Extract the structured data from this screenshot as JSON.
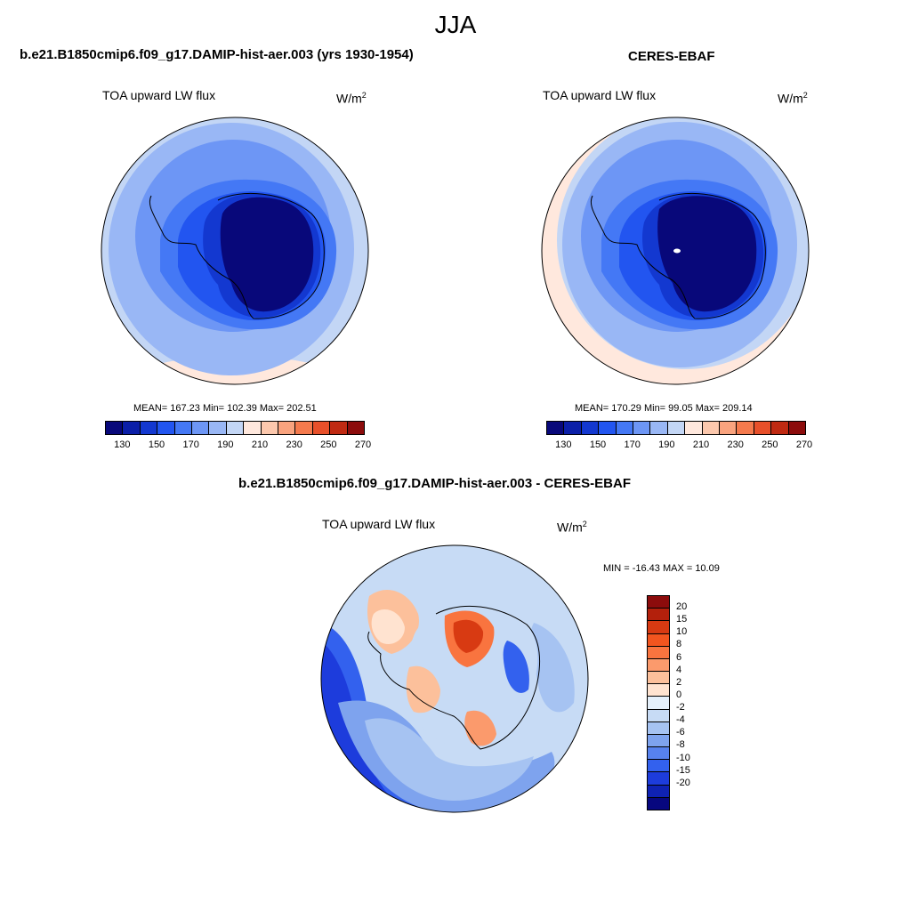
{
  "figure": {
    "title": "JJA"
  },
  "panels": [
    {
      "title": "b.e21.B1850cmip6.f09_g17.DAMIP-hist-aer.003 (yrs 1930-1954)",
      "variable": "TOA upward LW flux",
      "units": "W/m",
      "units_exp": "2",
      "stats": "MEAN= 167.23  Min= 102.39  Max= 202.51"
    },
    {
      "title": "CERES-EBAF",
      "variable": "TOA upward LW flux",
      "units": "W/m",
      "units_exp": "2",
      "stats": "MEAN= 170.29  Min=  99.05  Max= 209.14"
    },
    {
      "title": "b.e21.B1850cmip6.f09_g17.DAMIP-hist-aer.003 - CERES-EBAF",
      "variable": "TOA upward LW flux",
      "units": "W/m",
      "units_exp": "2",
      "stats": "MIN = -16.43 MAX =  10.09"
    }
  ],
  "colorbar_abs": {
    "colors": [
      "#08087a",
      "#0b1fa8",
      "#1338d0",
      "#2255f0",
      "#4478f5",
      "#6d96f5",
      "#99b7f5",
      "#c3d6f5",
      "#ffe8dd",
      "#fcc8ad",
      "#f9a37e",
      "#f57a4d",
      "#e8502a",
      "#c02a12",
      "#8c0c0c"
    ],
    "tick_labels": [
      "130",
      "150",
      "170",
      "190",
      "210",
      "230",
      "250",
      "270"
    ]
  },
  "colorbar_diff": {
    "colors": [
      "#8c0c0c",
      "#b3200c",
      "#d83a12",
      "#f2551f",
      "#f9743f",
      "#fb9a6c",
      "#fcc09b",
      "#ffe3d0",
      "#e5f0fb",
      "#c7dbf5",
      "#a6c3f2",
      "#7ea3ee",
      "#5782ee",
      "#3361ee",
      "#1d3cdc",
      "#0f22b4",
      "#07077f"
    ],
    "tick_labels": [
      "20",
      "15",
      "10",
      "8",
      "6",
      "4",
      "2",
      "0",
      "-2",
      "-4",
      "-6",
      "-8",
      "-10",
      "-15",
      "-20"
    ]
  }
}
